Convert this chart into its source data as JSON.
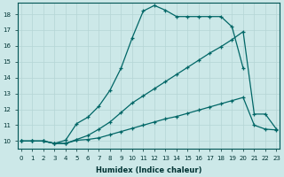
{
  "xlabel": "Humidex (Indice chaleur)",
  "bg_color": "#cce8e8",
  "grid_color": "#b5d5d5",
  "line_color": "#006666",
  "xlim": [
    -0.3,
    23.3
  ],
  "ylim": [
    9.5,
    18.7
  ],
  "yticks": [
    10,
    11,
    12,
    13,
    14,
    15,
    16,
    17,
    18
  ],
  "xticks": [
    0,
    1,
    2,
    3,
    4,
    5,
    6,
    7,
    8,
    9,
    10,
    11,
    12,
    13,
    14,
    15,
    16,
    17,
    18,
    19,
    20,
    21,
    22,
    23
  ],
  "series1_x": [
    0,
    1,
    2,
    3,
    4,
    5,
    6,
    7,
    8,
    9,
    10,
    11,
    12,
    13,
    14,
    15,
    16,
    17,
    18,
    19,
    20,
    21,
    22,
    23
  ],
  "series1_y": [
    10.0,
    10.0,
    10.0,
    9.85,
    9.85,
    10.05,
    10.1,
    10.2,
    10.4,
    10.6,
    10.8,
    11.0,
    11.2,
    11.4,
    11.55,
    11.75,
    11.95,
    12.15,
    12.35,
    12.55,
    12.75,
    11.0,
    10.75,
    10.7
  ],
  "series2_x": [
    0,
    1,
    2,
    3,
    4,
    5,
    6,
    7,
    8,
    9,
    10,
    11,
    12,
    13,
    14,
    15,
    16,
    17,
    18,
    19,
    20,
    21,
    22,
    23
  ],
  "series2_y": [
    10.0,
    10.0,
    10.0,
    9.85,
    9.85,
    10.1,
    10.35,
    10.75,
    11.2,
    11.8,
    12.4,
    12.85,
    13.3,
    13.75,
    14.2,
    14.65,
    15.1,
    15.55,
    15.95,
    16.4,
    16.9,
    11.7,
    11.7,
    10.75
  ],
  "series3_x": [
    0,
    1,
    2,
    3,
    4,
    5,
    6,
    7,
    8,
    9,
    10,
    11,
    12,
    13,
    14,
    15,
    16,
    17,
    18,
    19,
    20
  ],
  "series3_y": [
    10.0,
    10.0,
    10.0,
    9.85,
    10.05,
    11.1,
    11.5,
    12.2,
    13.2,
    14.6,
    16.5,
    18.2,
    18.55,
    18.25,
    17.85,
    17.85,
    17.85,
    17.85,
    17.85,
    17.2,
    14.6
  ]
}
